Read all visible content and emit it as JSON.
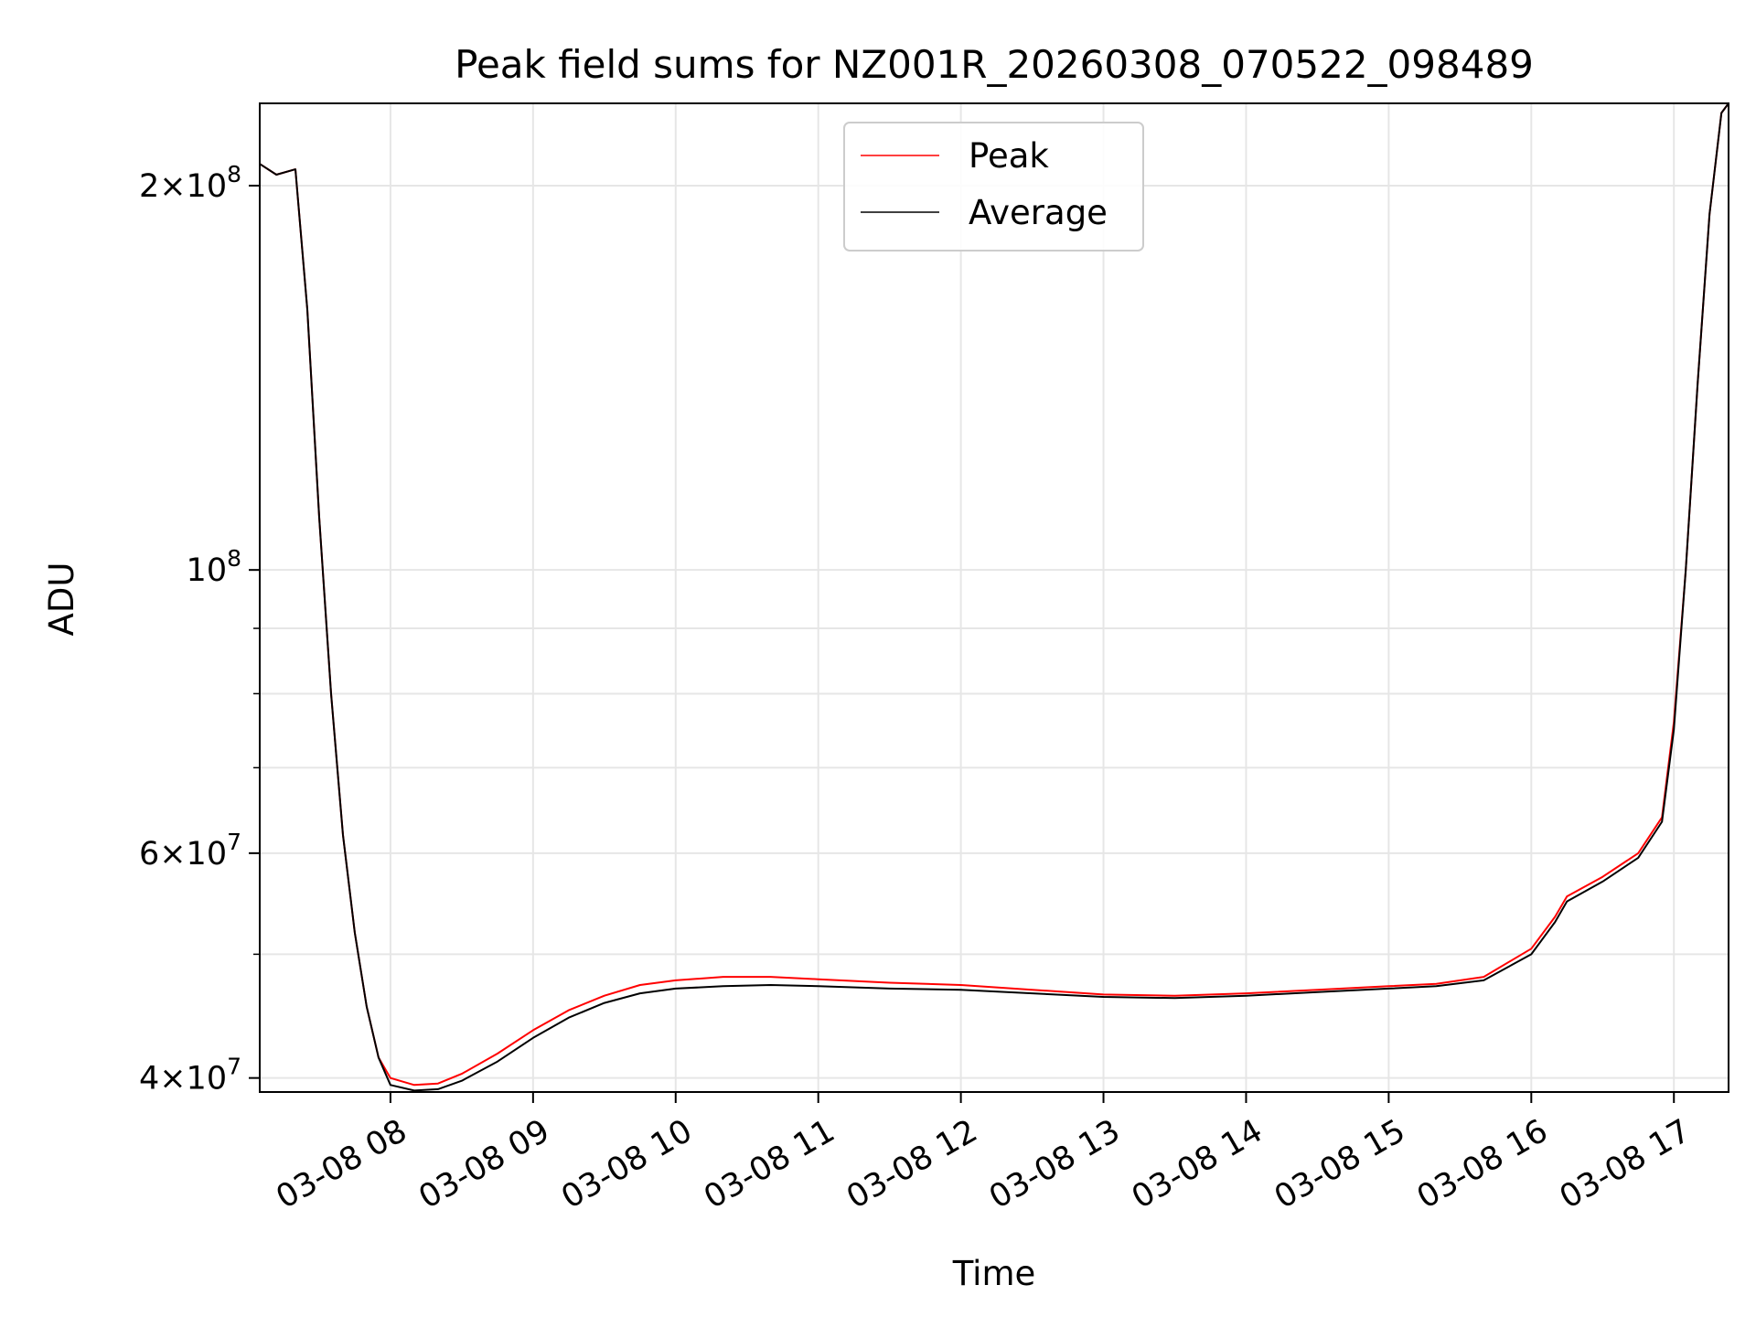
{
  "chart_data": {
    "type": "line",
    "title": "Peak field sums for NZ001R_20260308_070522_098489",
    "xlabel": "Time",
    "ylabel": "ADU",
    "yscale": "log",
    "grid": true,
    "legend_position": "upper center",
    "xlim": [
      "2026-03-08 07:05",
      "2026-03-08 17:23"
    ],
    "ylim": [
      39000000,
      232000000
    ],
    "x_ticks": [
      "2026-03-08 08:00",
      "2026-03-08 09:00",
      "2026-03-08 10:00",
      "2026-03-08 11:00",
      "2026-03-08 12:00",
      "2026-03-08 13:00",
      "2026-03-08 14:00",
      "2026-03-08 15:00",
      "2026-03-08 16:00",
      "2026-03-08 17:00"
    ],
    "x_tick_labels": [
      "03-08 08",
      "03-08 09",
      "03-08 10",
      "03-08 11",
      "03-08 12",
      "03-08 13",
      "03-08 14",
      "03-08 15",
      "03-08 16",
      "03-08 17"
    ],
    "y_major_ticks": [
      40000000,
      60000000,
      100000000,
      200000000
    ],
    "y_tick_labels": [
      {
        "mantissa": "4",
        "exponent": "7"
      },
      {
        "mantissa": "6",
        "exponent": "7"
      },
      {
        "mantissa": "",
        "exponent": "8"
      },
      {
        "mantissa": "2",
        "exponent": "8"
      }
    ],
    "y_minor_ticks": [
      50000000,
      70000000,
      80000000,
      90000000
    ],
    "series": [
      {
        "name": "Peak",
        "color": "#ff0000",
        "x": [
          "2026-03-08 07:05",
          "2026-03-08 07:12",
          "2026-03-08 07:20",
          "2026-03-08 07:25",
          "2026-03-08 07:30",
          "2026-03-08 07:35",
          "2026-03-08 07:40",
          "2026-03-08 07:45",
          "2026-03-08 07:50",
          "2026-03-08 07:55",
          "2026-03-08 08:00",
          "2026-03-08 08:10",
          "2026-03-08 08:20",
          "2026-03-08 08:30",
          "2026-03-08 08:45",
          "2026-03-08 09:00",
          "2026-03-08 09:15",
          "2026-03-08 09:30",
          "2026-03-08 09:45",
          "2026-03-08 10:00",
          "2026-03-08 10:20",
          "2026-03-08 10:40",
          "2026-03-08 11:00",
          "2026-03-08 11:30",
          "2026-03-08 12:00",
          "2026-03-08 12:30",
          "2026-03-08 13:00",
          "2026-03-08 13:30",
          "2026-03-08 14:00",
          "2026-03-08 14:30",
          "2026-03-08 15:00",
          "2026-03-08 15:20",
          "2026-03-08 15:40",
          "2026-03-08 16:00",
          "2026-03-08 16:10",
          "2026-03-08 16:15",
          "2026-03-08 16:30",
          "2026-03-08 16:45",
          "2026-03-08 16:55",
          "2026-03-08 17:00",
          "2026-03-08 17:05",
          "2026-03-08 17:10",
          "2026-03-08 17:15",
          "2026-03-08 17:20",
          "2026-03-08 17:23"
        ],
        "values": [
          208000000,
          204000000,
          206000000,
          160000000,
          110000000,
          80000000,
          62000000,
          52000000,
          45500000,
          41500000,
          40000000,
          39500000,
          39600000,
          40300000,
          41800000,
          43600000,
          45200000,
          46400000,
          47300000,
          47700000,
          48000000,
          48000000,
          47800000,
          47500000,
          47300000,
          46900000,
          46500000,
          46400000,
          46600000,
          46900000,
          47200000,
          47400000,
          48000000,
          50500000,
          53500000,
          55500000,
          57500000,
          60000000,
          64000000,
          76000000,
          100000000,
          140000000,
          190000000,
          228000000,
          232000000
        ]
      },
      {
        "name": "Average",
        "color": "#000000",
        "x": [
          "2026-03-08 07:05",
          "2026-03-08 07:12",
          "2026-03-08 07:20",
          "2026-03-08 07:25",
          "2026-03-08 07:30",
          "2026-03-08 07:35",
          "2026-03-08 07:40",
          "2026-03-08 07:45",
          "2026-03-08 07:50",
          "2026-03-08 07:55",
          "2026-03-08 08:00",
          "2026-03-08 08:10",
          "2026-03-08 08:20",
          "2026-03-08 08:30",
          "2026-03-08 08:45",
          "2026-03-08 09:00",
          "2026-03-08 09:15",
          "2026-03-08 09:30",
          "2026-03-08 09:45",
          "2026-03-08 10:00",
          "2026-03-08 10:20",
          "2026-03-08 10:40",
          "2026-03-08 11:00",
          "2026-03-08 11:30",
          "2026-03-08 12:00",
          "2026-03-08 12:30",
          "2026-03-08 13:00",
          "2026-03-08 13:30",
          "2026-03-08 14:00",
          "2026-03-08 14:30",
          "2026-03-08 15:00",
          "2026-03-08 15:20",
          "2026-03-08 15:40",
          "2026-03-08 16:00",
          "2026-03-08 16:10",
          "2026-03-08 16:15",
          "2026-03-08 16:30",
          "2026-03-08 16:45",
          "2026-03-08 16:55",
          "2026-03-08 17:00",
          "2026-03-08 17:05",
          "2026-03-08 17:10",
          "2026-03-08 17:15",
          "2026-03-08 17:20",
          "2026-03-08 17:23"
        ],
        "values": [
          208000000,
          204000000,
          206000000,
          160000000,
          110000000,
          80000000,
          62000000,
          52000000,
          45500000,
          41500000,
          39500000,
          39100000,
          39200000,
          39800000,
          41200000,
          43000000,
          44600000,
          45800000,
          46600000,
          47000000,
          47200000,
          47300000,
          47200000,
          47000000,
          46900000,
          46600000,
          46300000,
          46200000,
          46400000,
          46700000,
          47000000,
          47200000,
          47700000,
          50000000,
          53000000,
          55000000,
          57000000,
          59500000,
          63500000,
          75000000,
          100000000,
          140000000,
          190000000,
          228000000,
          232000000
        ]
      }
    ],
    "legend": [
      "Peak",
      "Average"
    ]
  }
}
